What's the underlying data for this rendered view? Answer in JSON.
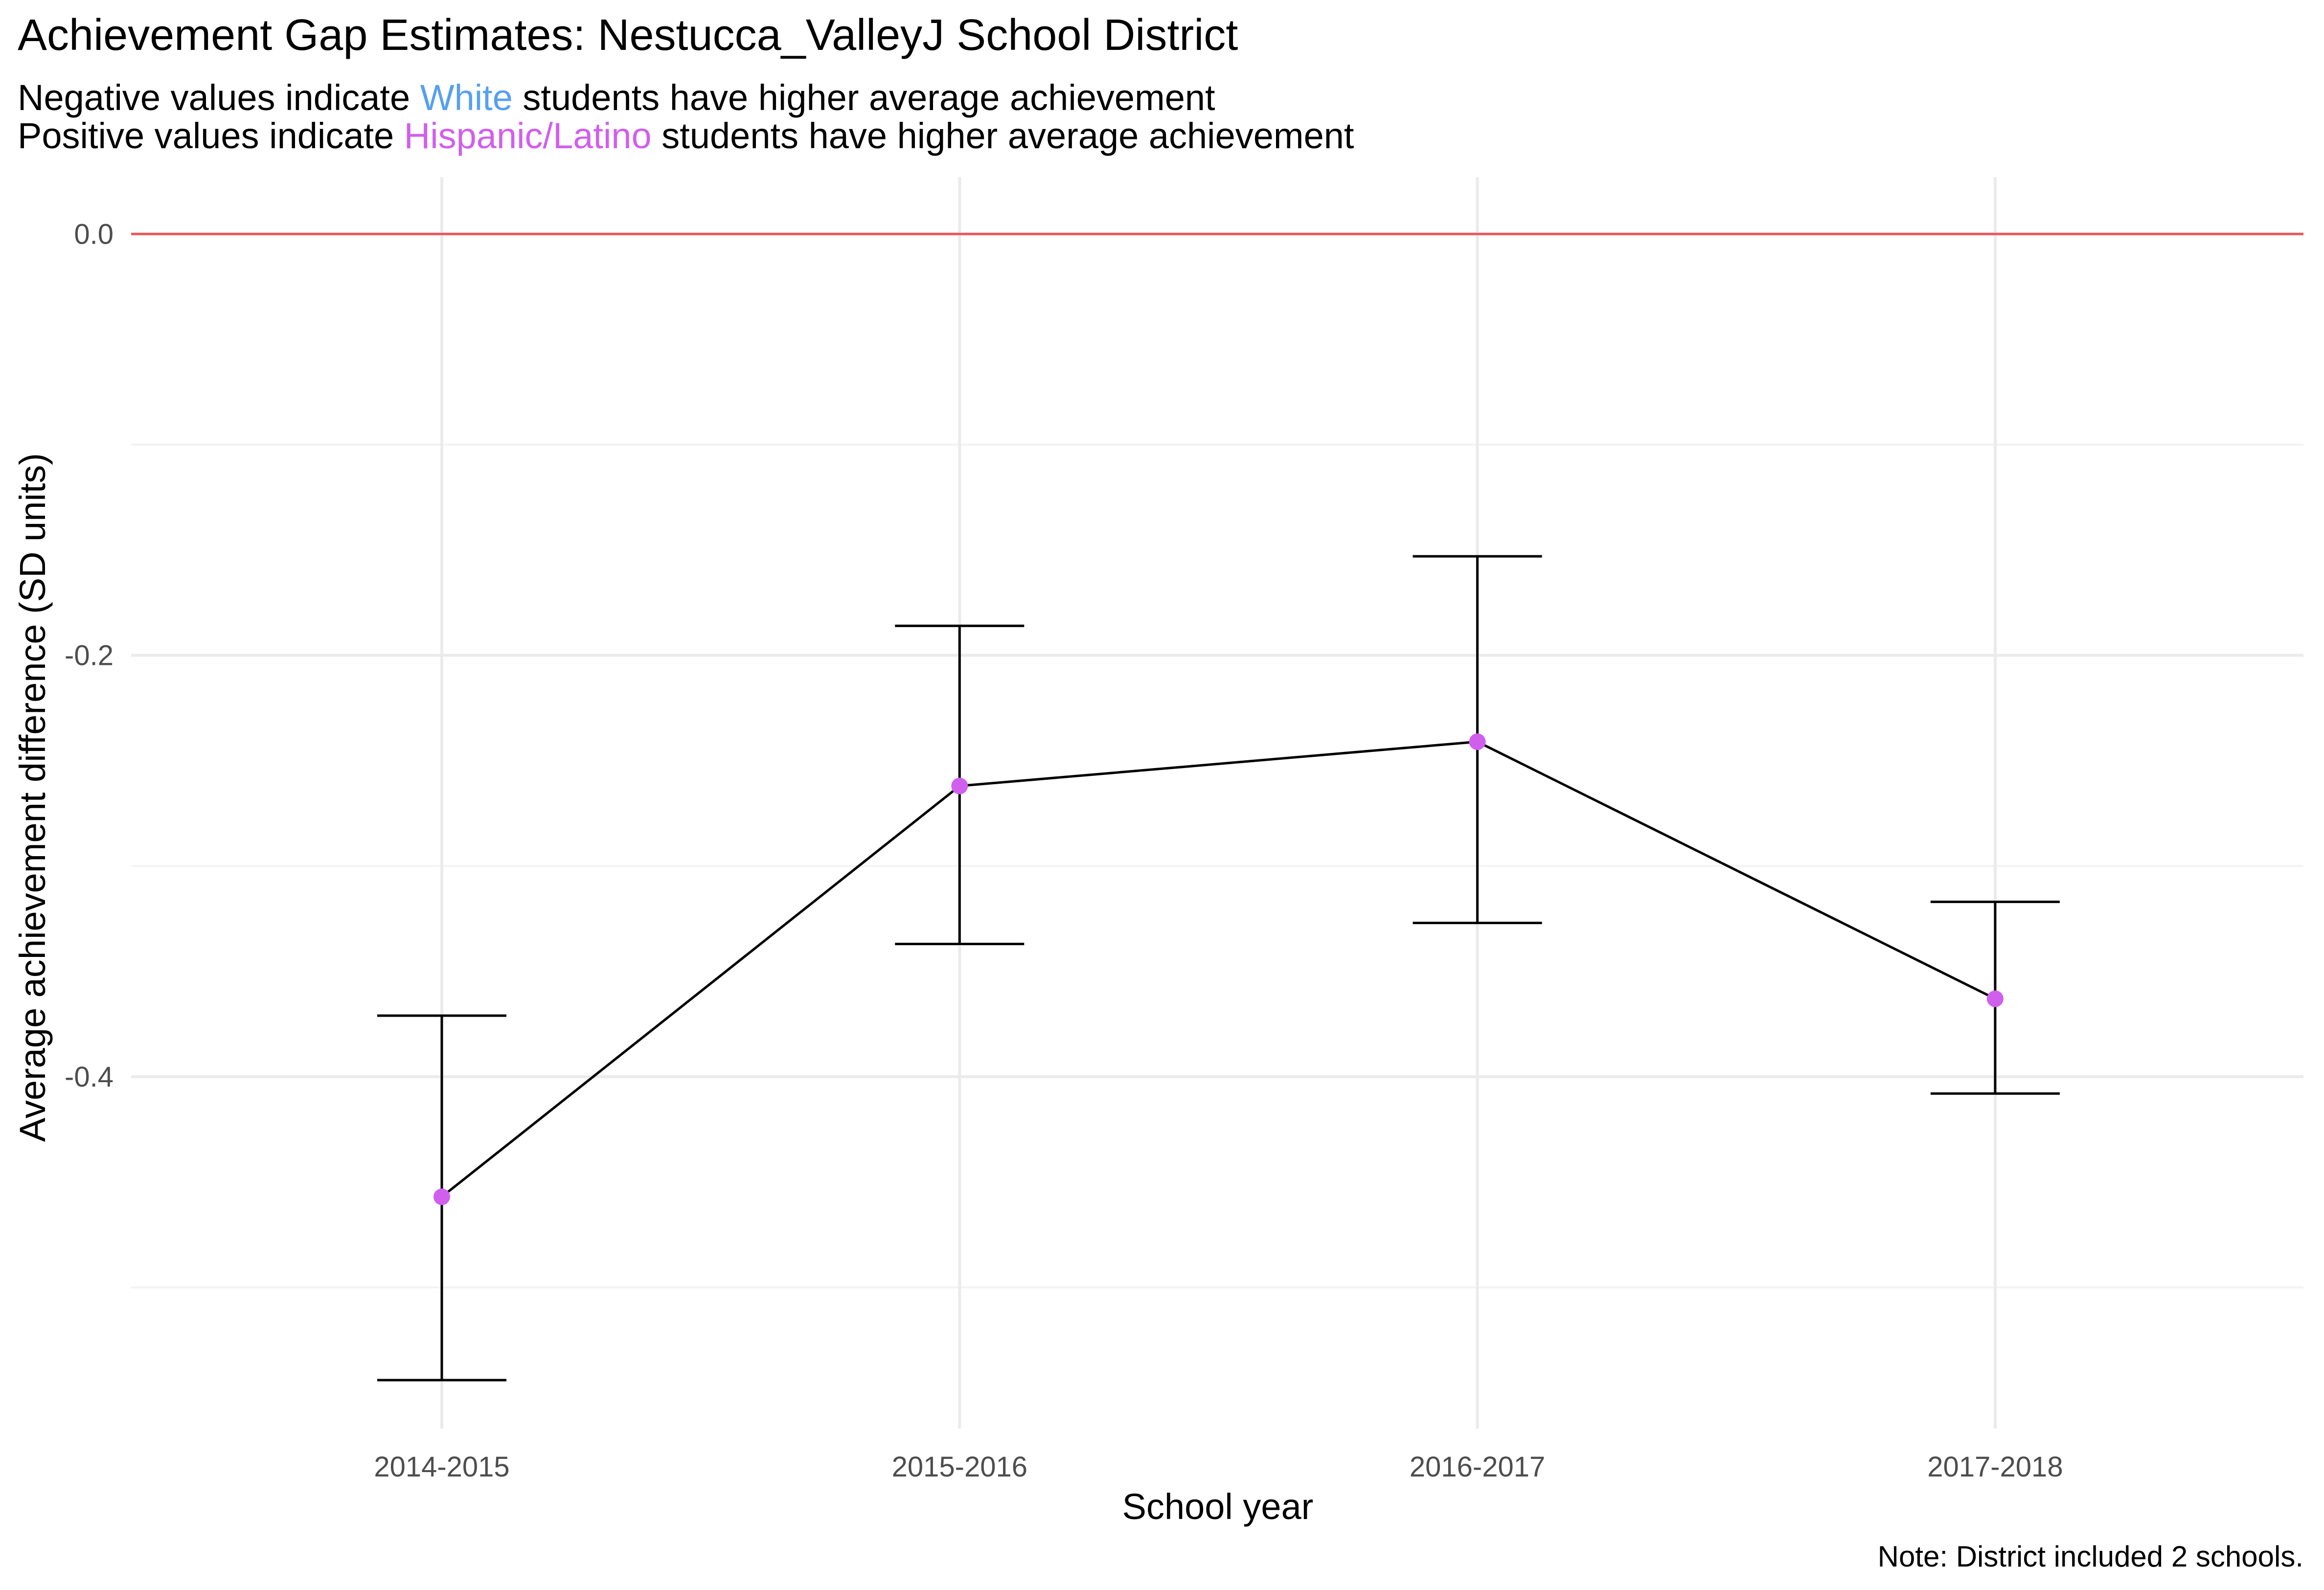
{
  "chart_data": {
    "type": "line",
    "title": "Achievement Gap Estimates: Nestucca_ValleyJ School District",
    "subtitle": {
      "line1": {
        "prefix": "Negative values indicate ",
        "highlight": "White",
        "suffix": " students have higher average achievement"
      },
      "line2": {
        "prefix": "Positive values indicate ",
        "highlight": "Hispanic/Latino",
        "suffix": " students have higher average achievement"
      }
    },
    "xlabel": "School year",
    "ylabel": "Average achievement difference (SD units)",
    "caption": "Note: District included 2 schools.",
    "categories": [
      "2014-2015",
      "2015-2016",
      "2016-2017",
      "2017-2018"
    ],
    "values": [
      -0.457,
      -0.262,
      -0.241,
      -0.363
    ],
    "error_low": [
      -0.544,
      -0.337,
      -0.327,
      -0.408
    ],
    "error_high": [
      -0.371,
      -0.186,
      -0.153,
      -0.317
    ],
    "yticks": [
      0.0,
      -0.2,
      -0.4
    ],
    "ytick_labels": [
      "0.0",
      "-0.2",
      "-0.4"
    ],
    "ylim": [
      -0.567,
      0.027
    ],
    "reference_line": 0,
    "grid": true,
    "colors": {
      "white": "#56A0F0",
      "hispanic_latino": "#D15FEE",
      "point": "#D15FEE",
      "line": "#000000",
      "reference_line": "#E8585B",
      "grid_major": "#EBEBEB",
      "grid_minor": "#F3F3F3",
      "axis_text": "#4D4D4D"
    }
  }
}
